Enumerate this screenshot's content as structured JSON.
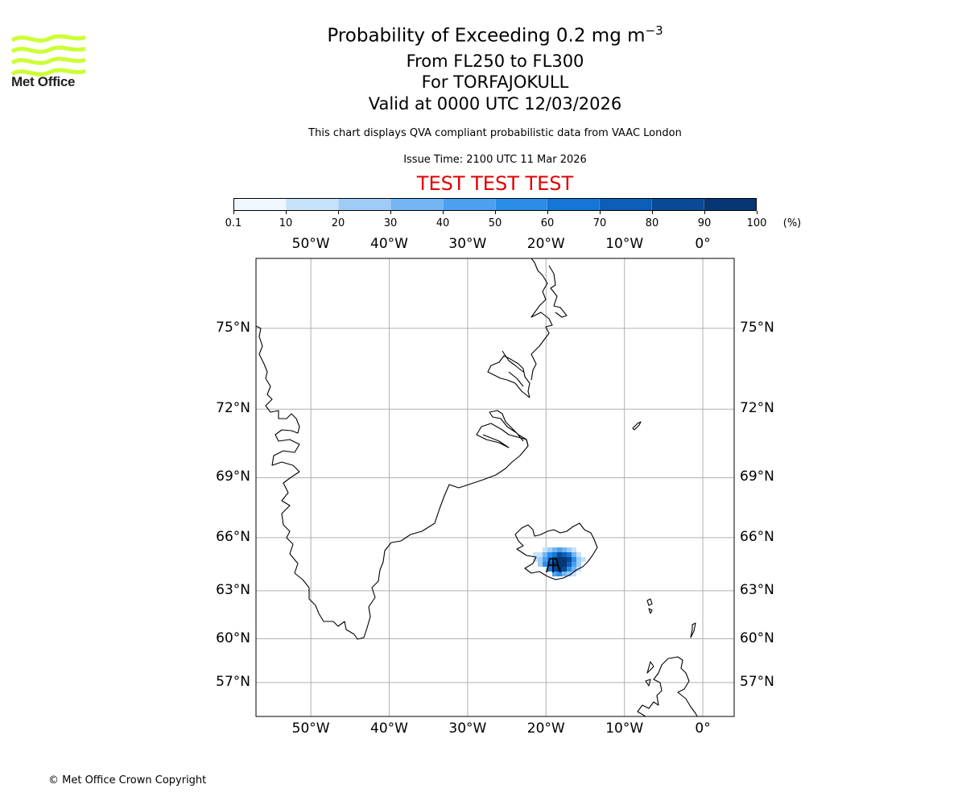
{
  "title": {
    "line1_text": "Probability of Exceeding 0.2 mg m",
    "line1_superscript": "−3",
    "line2": "From FL250 to FL300",
    "line3": "For TORFAJOKULL",
    "line4": "Valid at 0000 UTC 12/03/2026"
  },
  "logo": {
    "text": "Met Office",
    "color": "#ccff33"
  },
  "subtitle": "This chart displays QVA compliant probabilistic data from VAAC London",
  "issue_time": "Issue Time: 2100 UTC 11 Mar 2026",
  "test_banner": {
    "text": "TEST TEST TEST",
    "color": "#e00000"
  },
  "colorbar": {
    "ticks": [
      "0.1",
      "10",
      "20",
      "30",
      "40",
      "50",
      "60",
      "70",
      "80",
      "90",
      "100"
    ],
    "unit": "(%)",
    "colors": [
      "#f0f7ff",
      "#c6e2fb",
      "#9fccf7",
      "#74b5f3",
      "#4ba0f0",
      "#2a8ee9",
      "#1476d6",
      "#0b5fb8",
      "#084a96",
      "#063674"
    ]
  },
  "map": {
    "lon_labels": [
      "50°W",
      "40°W",
      "30°W",
      "20°W",
      "10°W",
      "0°"
    ],
    "lat_labels": [
      "75°N",
      "72°N",
      "69°N",
      "66°N",
      "63°N",
      "60°N",
      "57°N"
    ],
    "lon_values": [
      -50,
      -40,
      -30,
      -20,
      -10,
      0
    ],
    "lat_values": [
      75,
      72,
      69,
      66,
      63,
      60,
      57
    ],
    "extent": {
      "lon_min": -57,
      "lon_max": 4,
      "lat_min": 54.5,
      "lat_max": 77.2
    },
    "volcano": "TORFAJOKULL"
  },
  "copyright": "© Met Office Crown Copyright"
}
